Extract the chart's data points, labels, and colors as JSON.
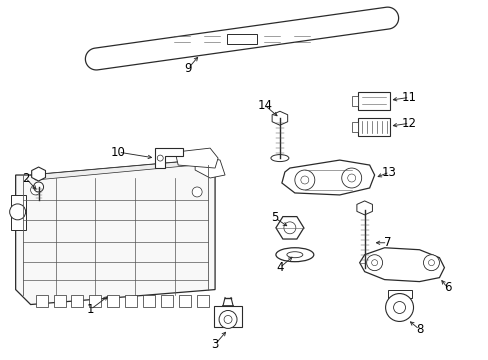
{
  "background_color": "#ffffff",
  "border_color": "#000000",
  "text_color": "#000000",
  "fig_width": 4.89,
  "fig_height": 3.6,
  "dpi": 100,
  "line_color": "#2a2a2a",
  "detail_color": "#555555"
}
